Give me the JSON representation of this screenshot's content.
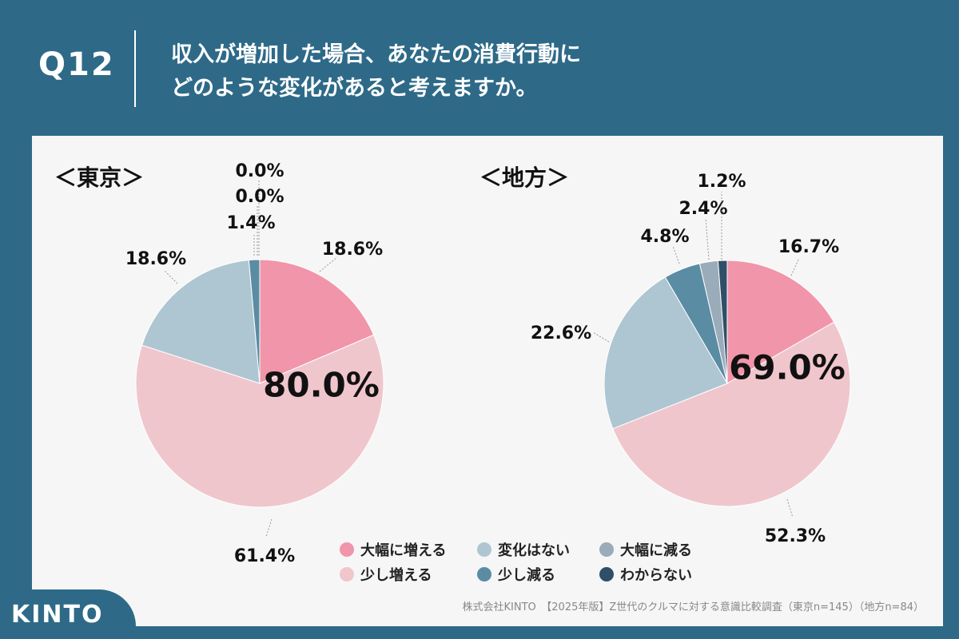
{
  "header": {
    "question": "Q12",
    "title_line1": "収入が増加した場合、あなたの消費行動に",
    "title_line2": "どのような変化があると考えますか。"
  },
  "colors": {
    "大幅に増える": "#f195aa",
    "少し増える": "#f0c6cd",
    "変化はない": "#aec6d2",
    "少し減る": "#5a8ca4",
    "大幅に減る": "#9aabb9",
    "わからない": "#2f4f68"
  },
  "legend": [
    {
      "label": "大幅に増える",
      "color": "#f195aa"
    },
    {
      "label": "変化はない",
      "color": "#aec6d2"
    },
    {
      "label": "大幅に減る",
      "color": "#9aabb9"
    },
    {
      "label": "少し増える",
      "color": "#f0c6cd"
    },
    {
      "label": "少し減る",
      "color": "#5a8ca4"
    },
    {
      "label": "わからない",
      "color": "#2f4f68"
    }
  ],
  "chart_data": [
    {
      "type": "pie",
      "title": "＜東京＞",
      "total_label": "80.0%",
      "categories": [
        "大幅に増える",
        "少し増える",
        "変化はない",
        "少し減る",
        "大幅に減る",
        "わからない"
      ],
      "values": [
        18.6,
        61.4,
        18.6,
        1.4,
        0.0,
        0.0
      ],
      "labels": [
        "18.6%",
        "61.4%",
        "18.6%",
        "1.4%",
        "0.0%",
        "0.0%"
      ]
    },
    {
      "type": "pie",
      "title": "＜地方＞",
      "total_label": "69.0%",
      "categories": [
        "大幅に増える",
        "少し増える",
        "変化はない",
        "少し減る",
        "大幅に減る",
        "わからない"
      ],
      "values": [
        16.7,
        52.3,
        22.6,
        4.8,
        2.4,
        1.2
      ],
      "labels": [
        "16.7%",
        "52.3%",
        "22.6%",
        "4.8%",
        "2.4%",
        "1.2%"
      ]
    }
  ],
  "footer": {
    "source": "株式会社KINTO　【2025年版】Z世代のクルマに対する意識比較調査（東京n=145）（地方n=84）",
    "logo": "KINTO"
  }
}
